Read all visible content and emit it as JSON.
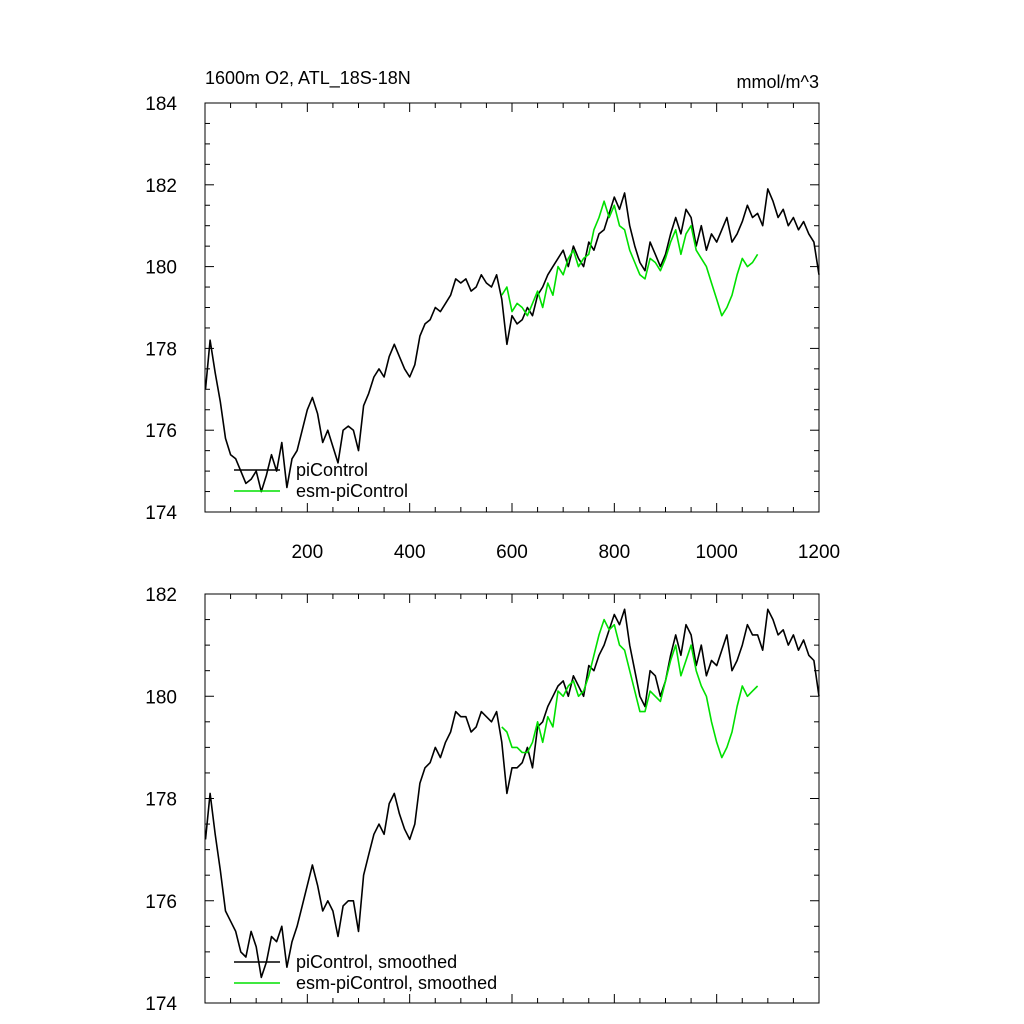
{
  "chart_data": [
    {
      "type": "line",
      "title": "1600m O2, ATL_18S-18N",
      "units": "mmol/m^3",
      "xlim": [
        0,
        1200
      ],
      "ylim": [
        174,
        184
      ],
      "xticks": [
        200,
        400,
        600,
        800,
        1000,
        1200
      ],
      "xtick_labels": [
        "200",
        "400",
        "600",
        "800",
        "1000",
        "1200"
      ],
      "yticks": [
        174,
        176,
        178,
        180,
        182,
        184
      ],
      "ytick_labels": [
        "174",
        "176",
        "178",
        "180",
        "182",
        "184"
      ],
      "grid": false,
      "legend": "bottom-left",
      "series": [
        {
          "name": "piControl",
          "color": "#000000",
          "x": [
            1,
            10,
            20,
            30,
            40,
            50,
            60,
            70,
            80,
            90,
            100,
            110,
            120,
            130,
            140,
            150,
            160,
            170,
            180,
            190,
            200,
            210,
            220,
            230,
            240,
            250,
            260,
            270,
            280,
            290,
            300,
            310,
            320,
            330,
            340,
            350,
            360,
            370,
            380,
            390,
            400,
            410,
            420,
            430,
            440,
            450,
            460,
            470,
            480,
            490,
            500,
            510,
            520,
            530,
            540,
            550,
            560,
            570,
            580,
            590,
            600,
            610,
            620,
            630,
            640,
            650,
            660,
            670,
            680,
            690,
            700,
            710,
            720,
            730,
            740,
            750,
            760,
            770,
            780,
            790,
            800,
            810,
            820,
            830,
            840,
            850,
            860,
            870,
            880,
            890,
            900,
            910,
            920,
            930,
            940,
            950,
            960,
            970,
            980,
            990,
            1000,
            1010,
            1020,
            1030,
            1040,
            1050,
            1060,
            1070,
            1080,
            1090,
            1100,
            1110,
            1120,
            1130,
            1140,
            1150,
            1160,
            1170,
            1180,
            1190,
            1200
          ],
          "values": [
            177.0,
            178.2,
            177.4,
            176.7,
            175.8,
            175.4,
            175.3,
            175.0,
            174.7,
            174.8,
            175.0,
            174.5,
            174.9,
            175.4,
            175.0,
            175.7,
            174.6,
            175.3,
            175.5,
            176.0,
            176.5,
            176.8,
            176.4,
            175.7,
            176.0,
            175.6,
            175.2,
            176.0,
            176.1,
            176.0,
            175.5,
            176.6,
            176.9,
            177.3,
            177.5,
            177.3,
            177.8,
            178.1,
            177.8,
            177.5,
            177.3,
            177.6,
            178.3,
            178.6,
            178.7,
            179.0,
            178.9,
            179.1,
            179.3,
            179.7,
            179.6,
            179.7,
            179.4,
            179.5,
            179.8,
            179.6,
            179.5,
            179.8,
            179.2,
            178.1,
            178.8,
            178.6,
            178.7,
            179.0,
            178.8,
            179.3,
            179.5,
            179.8,
            180.0,
            180.2,
            180.4,
            180.0,
            180.5,
            180.2,
            180.0,
            180.6,
            180.4,
            180.8,
            180.9,
            181.3,
            181.7,
            181.4,
            181.8,
            181.0,
            180.5,
            180.1,
            179.9,
            180.6,
            180.3,
            180.0,
            180.3,
            180.8,
            181.2,
            180.8,
            181.4,
            181.2,
            180.5,
            181.0,
            180.4,
            180.8,
            180.6,
            180.9,
            181.2,
            180.6,
            180.8,
            181.1,
            181.5,
            181.2,
            181.3,
            181.0,
            181.9,
            181.6,
            181.2,
            181.4,
            181.0,
            181.2,
            180.9,
            181.1,
            180.8,
            180.6,
            179.8
          ]
        },
        {
          "name": "esm-piControl",
          "color": "#00e000",
          "x": [
            580,
            590,
            600,
            610,
            620,
            630,
            640,
            650,
            660,
            670,
            680,
            690,
            700,
            710,
            720,
            730,
            740,
            750,
            760,
            770,
            780,
            790,
            800,
            810,
            820,
            830,
            840,
            850,
            860,
            870,
            880,
            890,
            900,
            910,
            920,
            930,
            940,
            950,
            960,
            970,
            980,
            990,
            1000,
            1010,
            1020,
            1030,
            1040,
            1050,
            1060,
            1070,
            1080
          ],
          "values": [
            179.3,
            179.5,
            178.9,
            179.1,
            179.0,
            178.8,
            179.1,
            179.4,
            179.0,
            179.6,
            179.3,
            180.0,
            179.8,
            180.2,
            180.4,
            180.0,
            180.2,
            180.3,
            180.9,
            181.2,
            181.6,
            181.2,
            181.5,
            181.0,
            180.9,
            180.4,
            180.1,
            179.8,
            179.7,
            180.2,
            180.1,
            179.9,
            180.2,
            180.6,
            180.9,
            180.3,
            180.8,
            181.0,
            180.4,
            180.2,
            180.0,
            179.6,
            179.2,
            178.8,
            179.0,
            179.3,
            179.8,
            180.2,
            180.0,
            180.1,
            180.3
          ]
        }
      ]
    },
    {
      "type": "line",
      "xlim": [
        0,
        1200
      ],
      "ylim": [
        174,
        182
      ],
      "xticks": [
        200,
        400,
        600,
        800,
        1000,
        1200
      ],
      "yticks": [
        174,
        176,
        178,
        180,
        182
      ],
      "ytick_labels": [
        "174",
        "176",
        "178",
        "180",
        "182"
      ],
      "grid": false,
      "legend": "bottom-left",
      "series": [
        {
          "name": "piControl, smoothed",
          "color": "#000000",
          "x": [
            1,
            10,
            20,
            30,
            40,
            50,
            60,
            70,
            80,
            90,
            100,
            110,
            120,
            130,
            140,
            150,
            160,
            170,
            180,
            190,
            200,
            210,
            220,
            230,
            240,
            250,
            260,
            270,
            280,
            290,
            300,
            310,
            320,
            330,
            340,
            350,
            360,
            370,
            380,
            390,
            400,
            410,
            420,
            430,
            440,
            450,
            460,
            470,
            480,
            490,
            500,
            510,
            520,
            530,
            540,
            550,
            560,
            570,
            580,
            590,
            600,
            610,
            620,
            630,
            640,
            650,
            660,
            670,
            680,
            690,
            700,
            710,
            720,
            730,
            740,
            750,
            760,
            770,
            780,
            790,
            800,
            810,
            820,
            830,
            840,
            850,
            860,
            870,
            880,
            890,
            900,
            910,
            920,
            930,
            940,
            950,
            960,
            970,
            980,
            990,
            1000,
            1010,
            1020,
            1030,
            1040,
            1050,
            1060,
            1070,
            1080,
            1090,
            1100,
            1110,
            1120,
            1130,
            1140,
            1150,
            1160,
            1170,
            1180,
            1190,
            1200
          ],
          "values": [
            177.2,
            178.1,
            177.3,
            176.6,
            175.8,
            175.6,
            175.4,
            175.0,
            174.9,
            175.4,
            175.1,
            174.5,
            174.8,
            175.3,
            175.2,
            175.5,
            174.7,
            175.2,
            175.5,
            175.9,
            176.3,
            176.7,
            176.3,
            175.8,
            176.0,
            175.8,
            175.3,
            175.9,
            176.0,
            176.0,
            175.4,
            176.5,
            176.9,
            177.3,
            177.5,
            177.3,
            177.9,
            178.1,
            177.7,
            177.4,
            177.2,
            177.5,
            178.3,
            178.6,
            178.7,
            179.0,
            178.8,
            179.1,
            179.3,
            179.7,
            179.6,
            179.6,
            179.3,
            179.4,
            179.7,
            179.6,
            179.5,
            179.7,
            179.1,
            178.1,
            178.6,
            178.6,
            178.7,
            179.0,
            178.6,
            179.4,
            179.5,
            179.8,
            180.0,
            180.2,
            180.3,
            180.0,
            180.4,
            180.2,
            180.0,
            180.6,
            180.5,
            180.8,
            181.0,
            181.3,
            181.6,
            181.4,
            181.7,
            181.0,
            180.5,
            180.0,
            179.8,
            180.5,
            180.4,
            180.0,
            180.3,
            180.8,
            181.2,
            180.8,
            181.4,
            181.2,
            180.6,
            181.0,
            180.4,
            180.7,
            180.6,
            180.9,
            181.2,
            180.5,
            180.7,
            181.0,
            181.4,
            181.2,
            181.2,
            180.9,
            181.7,
            181.5,
            181.2,
            181.3,
            181.0,
            181.2,
            180.9,
            181.1,
            180.8,
            180.7,
            180.0
          ]
        },
        {
          "name": "esm-piControl, smoothed",
          "color": "#00e000",
          "x": [
            580,
            590,
            600,
            610,
            620,
            630,
            640,
            650,
            660,
            670,
            680,
            690,
            700,
            710,
            720,
            730,
            740,
            750,
            760,
            770,
            780,
            790,
            800,
            810,
            820,
            830,
            840,
            850,
            860,
            870,
            880,
            890,
            900,
            910,
            920,
            930,
            940,
            950,
            960,
            970,
            980,
            990,
            1000,
            1010,
            1020,
            1030,
            1040,
            1050,
            1060,
            1070,
            1080
          ],
          "values": [
            179.4,
            179.3,
            179.0,
            179.0,
            178.9,
            178.9,
            179.1,
            179.5,
            179.1,
            179.6,
            179.4,
            180.1,
            180.0,
            180.2,
            180.3,
            180.0,
            180.1,
            180.4,
            180.8,
            181.2,
            181.5,
            181.3,
            181.4,
            181.0,
            180.9,
            180.5,
            180.1,
            179.7,
            179.7,
            180.1,
            180.0,
            179.9,
            180.3,
            180.7,
            181.0,
            180.4,
            180.7,
            181.0,
            180.5,
            180.2,
            180.0,
            179.5,
            179.1,
            178.8,
            179.0,
            179.3,
            179.8,
            180.2,
            180.0,
            180.1,
            180.2
          ]
        }
      ]
    }
  ]
}
